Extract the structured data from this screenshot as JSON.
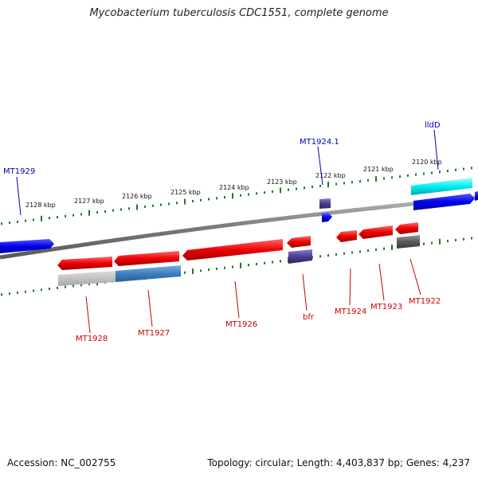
{
  "title": "Mycobacterium tuberculosis CDC1551, complete genome",
  "footer": {
    "accession": "Accession: NC_002755",
    "topology": "Topology: circular; Length: 4,403,837 bp; Genes: 4,237"
  },
  "colors": {
    "backbone": "#8a8a8a",
    "tick": "#1f7a1f",
    "forward_gene": "#0000ee",
    "reverse_gene": "#ee0000",
    "forward_label": "#0000bb",
    "reverse_label": "#cc0000"
  },
  "scale_ticks": [
    "2128 kbp",
    "2127 kbp",
    "2126 kbp",
    "2125 kbp",
    "2124 kbp",
    "2123 kbp",
    "2122 kbp",
    "2121 kbp",
    "2120 kbp"
  ],
  "gene_labels": {
    "forward": [
      "MT1929",
      "MT1924.1",
      "lldD"
    ],
    "reverse": [
      "MT1928",
      "MT1927",
      "MT1926",
      "bfr",
      "MT1924",
      "MT1923",
      "MT1922"
    ]
  }
}
